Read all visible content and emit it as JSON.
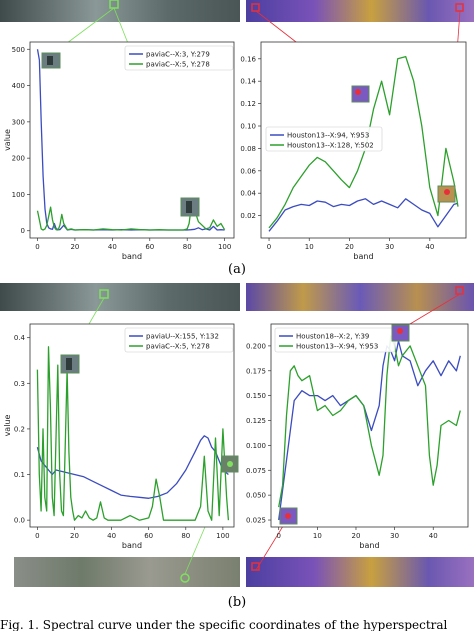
{
  "figure": {
    "caption_a": "(a)",
    "caption_b": "(b)",
    "footer_text": "Fig. 1.     Spectral curve under the specific coordinates of the hyperspectral"
  },
  "colors": {
    "blue": "#3b4cc0",
    "green": "#2ca02c",
    "red": "#e8303a",
    "lime": "#7fe060"
  },
  "chart_data": [
    {
      "id": "a-left",
      "type": "line",
      "xlabel": "band",
      "ylabel": "value",
      "xlim": [
        -4,
        105
      ],
      "ylim": [
        -20,
        520
      ],
      "xticks": [
        0,
        20,
        40,
        60,
        80,
        100
      ],
      "yticks": [
        0,
        100,
        200,
        300,
        400,
        500
      ],
      "ytick_labels": [
        "0",
        "100",
        "200",
        "300",
        "400",
        "500"
      ],
      "legend_position": "top-right",
      "series": [
        {
          "name": "paviaC--X:3, Y:279",
          "color": "#3b4cc0",
          "x": [
            0,
            1,
            2,
            3,
            4,
            5,
            6,
            7,
            8,
            9,
            10,
            12,
            14,
            16,
            18,
            20,
            25,
            30,
            35,
            40,
            45,
            50,
            55,
            60,
            65,
            70,
            75,
            80,
            82,
            84,
            86,
            88,
            90,
            92,
            94,
            96,
            98,
            100
          ],
          "values": [
            500,
            470,
            300,
            150,
            60,
            20,
            8,
            5,
            4,
            20,
            5,
            3,
            15,
            2,
            4,
            2,
            3,
            2,
            3,
            2,
            3,
            2,
            3,
            2,
            2,
            2,
            2,
            2,
            3,
            4,
            8,
            3,
            5,
            2,
            12,
            2,
            3,
            2
          ]
        },
        {
          "name": "paviaC--X:5, Y:278",
          "color": "#2ca02c",
          "x": [
            0,
            1,
            2,
            3,
            4,
            5,
            6,
            7,
            8,
            9,
            10,
            11,
            12,
            13,
            14,
            16,
            18,
            20,
            25,
            30,
            35,
            40,
            45,
            50,
            55,
            60,
            65,
            70,
            75,
            78,
            80,
            81,
            82,
            83,
            84,
            85,
            86,
            88,
            90,
            92,
            94,
            96,
            98,
            100
          ],
          "values": [
            55,
            30,
            5,
            2,
            5,
            15,
            40,
            65,
            30,
            10,
            3,
            2,
            15,
            45,
            20,
            3,
            5,
            2,
            3,
            2,
            5,
            3,
            2,
            5,
            3,
            2,
            3,
            2,
            2,
            2,
            5,
            20,
            60,
            85,
            70,
            40,
            25,
            15,
            5,
            8,
            30,
            12,
            20,
            3
          ]
        }
      ]
    },
    {
      "id": "a-right",
      "type": "line",
      "xlabel": "band",
      "ylabel": "",
      "xlim": [
        -2,
        49
      ],
      "ylim": [
        0.0,
        0.175
      ],
      "xticks": [
        0,
        10,
        20,
        30,
        40
      ],
      "yticks": [
        0.02,
        0.04,
        0.06,
        0.08,
        0.1,
        0.12,
        0.14,
        0.16
      ],
      "ytick_labels": [
        "0.02",
        "0.04",
        "0.06",
        "0.08",
        "0.10",
        "0.12",
        "0.14",
        "0.16"
      ],
      "legend_position": "center-left",
      "series": [
        {
          "name": "Houston13--X:94, Y:953",
          "color": "#3b4cc0",
          "x": [
            0,
            2,
            4,
            6,
            8,
            10,
            12,
            14,
            16,
            18,
            20,
            22,
            24,
            26,
            28,
            30,
            32,
            34,
            36,
            38,
            40,
            42,
            44,
            46,
            47
          ],
          "values": [
            0.006,
            0.015,
            0.025,
            0.028,
            0.03,
            0.029,
            0.033,
            0.032,
            0.028,
            0.03,
            0.029,
            0.033,
            0.035,
            0.03,
            0.033,
            0.03,
            0.027,
            0.035,
            0.03,
            0.025,
            0.022,
            0.01,
            0.02,
            0.03,
            0.031
          ]
        },
        {
          "name": "Houston13--X:128, Y:502",
          "color": "#2ca02c",
          "x": [
            0,
            2,
            4,
            6,
            8,
            10,
            12,
            14,
            16,
            18,
            20,
            22,
            24,
            26,
            28,
            30,
            32,
            34,
            36,
            38,
            40,
            42,
            44,
            46,
            47
          ],
          "values": [
            0.009,
            0.018,
            0.03,
            0.045,
            0.055,
            0.065,
            0.072,
            0.068,
            0.06,
            0.052,
            0.045,
            0.06,
            0.08,
            0.115,
            0.14,
            0.11,
            0.16,
            0.162,
            0.14,
            0.1,
            0.045,
            0.02,
            0.08,
            0.05,
            0.028
          ]
        }
      ]
    },
    {
      "id": "b-left",
      "type": "line",
      "xlabel": "band",
      "ylabel": "value",
      "xlim": [
        -4,
        106
      ],
      "ylim": [
        -0.015,
        0.43
      ],
      "xticks": [
        0,
        20,
        40,
        60,
        80,
        100
      ],
      "yticks": [
        0.0,
        0.1,
        0.2,
        0.3,
        0.4
      ],
      "ytick_labels": [
        "0.0",
        "0.1",
        "0.2",
        "0.3",
        "0.4"
      ],
      "legend_position": "top-right",
      "series": [
        {
          "name": "paviaU--X:155, Y:132",
          "color": "#3b4cc0",
          "x": [
            0,
            2,
            4,
            6,
            8,
            10,
            15,
            20,
            25,
            30,
            35,
            40,
            45,
            50,
            55,
            60,
            65,
            70,
            75,
            80,
            85,
            88,
            90,
            92,
            94,
            96,
            98,
            100,
            103
          ],
          "values": [
            0.16,
            0.13,
            0.12,
            0.11,
            0.1,
            0.11,
            0.105,
            0.1,
            0.095,
            0.085,
            0.075,
            0.065,
            0.055,
            0.052,
            0.05,
            0.048,
            0.052,
            0.06,
            0.08,
            0.11,
            0.15,
            0.175,
            0.185,
            0.18,
            0.16,
            0.15,
            0.13,
            0.11,
            0.1
          ]
        },
        {
          "name": "paviaC--X:5, Y:278",
          "color": "#2ca02c",
          "x": [
            0,
            1,
            2,
            3,
            4,
            5,
            6,
            7,
            8,
            9,
            10,
            11,
            12,
            13,
            14,
            15,
            16,
            17,
            18,
            19,
            20,
            22,
            24,
            26,
            28,
            30,
            32,
            34,
            36,
            38,
            40,
            45,
            50,
            55,
            60,
            62,
            64,
            66,
            68,
            70,
            75,
            80,
            85,
            88,
            90,
            92,
            94,
            96,
            98,
            100,
            102,
            103
          ],
          "values": [
            0.33,
            0.1,
            0.02,
            0.2,
            0.05,
            0.02,
            0.38,
            0.25,
            0.05,
            0.01,
            0.18,
            0.34,
            0.1,
            0.02,
            0.01,
            0.16,
            0.33,
            0.15,
            0.05,
            0.02,
            0.0,
            0.01,
            0.005,
            0.02,
            0.005,
            0.0,
            0.005,
            0.04,
            0.005,
            0.0,
            0.0,
            0.0,
            0.01,
            0.0,
            0.005,
            0.03,
            0.09,
            0.05,
            0.0,
            0.0,
            0.0,
            0.0,
            0.0,
            0.03,
            0.14,
            0.02,
            0.0,
            0.18,
            0.01,
            0.2,
            0.05,
            0.0
          ]
        }
      ]
    },
    {
      "id": "b-right",
      "type": "line",
      "xlabel": "band",
      "ylabel": "",
      "xlim": [
        -2,
        49
      ],
      "ylim": [
        0.018,
        0.222
      ],
      "xticks": [
        0,
        10,
        20,
        30,
        40
      ],
      "yticks": [
        0.025,
        0.05,
        0.075,
        0.1,
        0.125,
        0.15,
        0.175,
        0.2
      ],
      "ytick_labels": [
        "0.025",
        "0.050",
        "0.075",
        "0.100",
        "0.125",
        "0.150",
        "0.175",
        "0.200"
      ],
      "legend_position": "top-left",
      "series": [
        {
          "name": "Houston18--X:2, Y:39",
          "color": "#3b4cc0",
          "x": [
            0,
            2,
            4,
            6,
            8,
            10,
            12,
            14,
            16,
            18,
            20,
            22,
            24,
            26,
            27,
            28,
            29,
            30,
            31,
            32,
            34,
            36,
            38,
            40,
            42,
            44,
            46,
            47
          ],
          "values": [
            0.025,
            0.085,
            0.145,
            0.155,
            0.15,
            0.15,
            0.145,
            0.15,
            0.14,
            0.145,
            0.15,
            0.14,
            0.115,
            0.14,
            0.18,
            0.2,
            0.195,
            0.185,
            0.205,
            0.19,
            0.185,
            0.16,
            0.175,
            0.185,
            0.17,
            0.185,
            0.175,
            0.19
          ]
        },
        {
          "name": "Houston13--X:94, Y:953",
          "color": "#2ca02c",
          "x": [
            0,
            1,
            2,
            3,
            4,
            5,
            6,
            8,
            10,
            12,
            14,
            16,
            18,
            20,
            22,
            24,
            26,
            27,
            28,
            29,
            30,
            31,
            32,
            34,
            36,
            38,
            39,
            40,
            41,
            42,
            44,
            46,
            47
          ],
          "values": [
            0.038,
            0.06,
            0.13,
            0.175,
            0.18,
            0.17,
            0.165,
            0.17,
            0.135,
            0.14,
            0.13,
            0.135,
            0.145,
            0.15,
            0.14,
            0.1,
            0.07,
            0.09,
            0.17,
            0.21,
            0.2,
            0.18,
            0.19,
            0.2,
            0.18,
            0.16,
            0.09,
            0.06,
            0.08,
            0.12,
            0.125,
            0.12,
            0.135
          ]
        }
      ]
    }
  ]
}
